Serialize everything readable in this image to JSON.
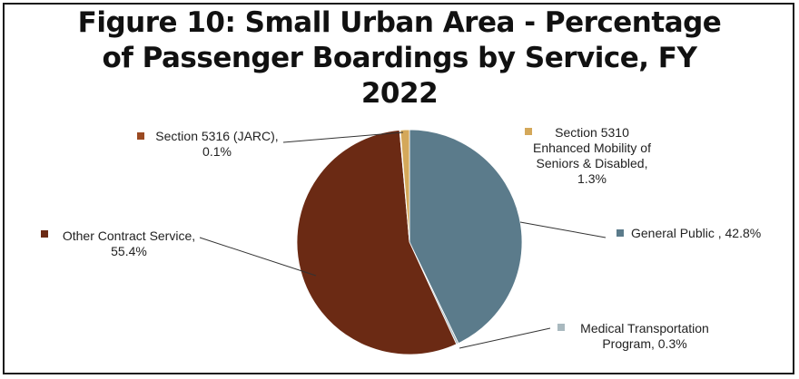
{
  "chart_data": {
    "type": "pie",
    "title_lines": [
      "Figure 10: Small Urban Area - Percentage",
      "of Passenger  Boardings by Service, FY",
      "2022"
    ],
    "slices": [
      {
        "name": "General Public",
        "value": 42.8,
        "color": "#5b7b8b",
        "label_lines": [
          "General Public , 42.8%"
        ]
      },
      {
        "name": "Medical Transportation Program",
        "value": 0.3,
        "color": "#a9b9bf",
        "label_lines": [
          "Medical Transportation",
          "Program, 0.3%"
        ]
      },
      {
        "name": "Other Contract Service",
        "value": 55.4,
        "color": "#6b2a14",
        "label_lines": [
          "Other Contract Service,",
          "55.4%"
        ]
      },
      {
        "name": "Section 5316 (JARC)",
        "value": 0.1,
        "color": "#9b4a22",
        "label_lines": [
          "Section 5316 (JARC),",
          "0.1%"
        ]
      },
      {
        "name": "Section 5310 Enhanced Mobility of Seniors & Disabled",
        "value": 1.3,
        "color": "#d4a85a",
        "label_lines": [
          "Section 5310",
          "Enhanced Mobility of",
          "Seniors & Disabled,",
          "1.3%"
        ]
      }
    ],
    "start_angle_deg": 0,
    "direction": "clockwise",
    "legend": "none"
  }
}
